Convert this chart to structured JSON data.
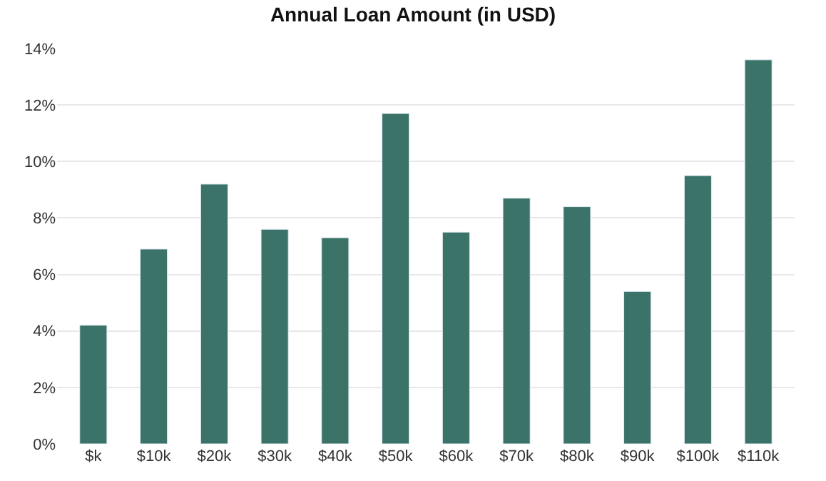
{
  "chart_data": {
    "type": "bar",
    "title": "Annual Loan Amount (in USD)",
    "categories": [
      "$k",
      "$10k",
      "$20k",
      "$30k",
      "$40k",
      "$50k",
      "$60k",
      "$70k",
      "$80k",
      "$90k",
      "$100k",
      "$110k"
    ],
    "values": [
      4.2,
      6.9,
      9.2,
      7.6,
      7.3,
      11.7,
      7.5,
      8.7,
      8.4,
      5.4,
      9.5,
      13.6
    ],
    "color": "#3b7369",
    "ylim": [
      0,
      14
    ],
    "yticks": [
      {
        "value": 0,
        "label": "0%"
      },
      {
        "value": 2,
        "label": "2%"
      },
      {
        "value": 4,
        "label": "4%"
      },
      {
        "value": 6,
        "label": "6%"
      },
      {
        "value": 8,
        "label": "8%"
      },
      {
        "value": 10,
        "label": "10%"
      },
      {
        "value": 12,
        "label": "12%"
      },
      {
        "value": 14,
        "label": "14%"
      }
    ],
    "grid": "y"
  }
}
